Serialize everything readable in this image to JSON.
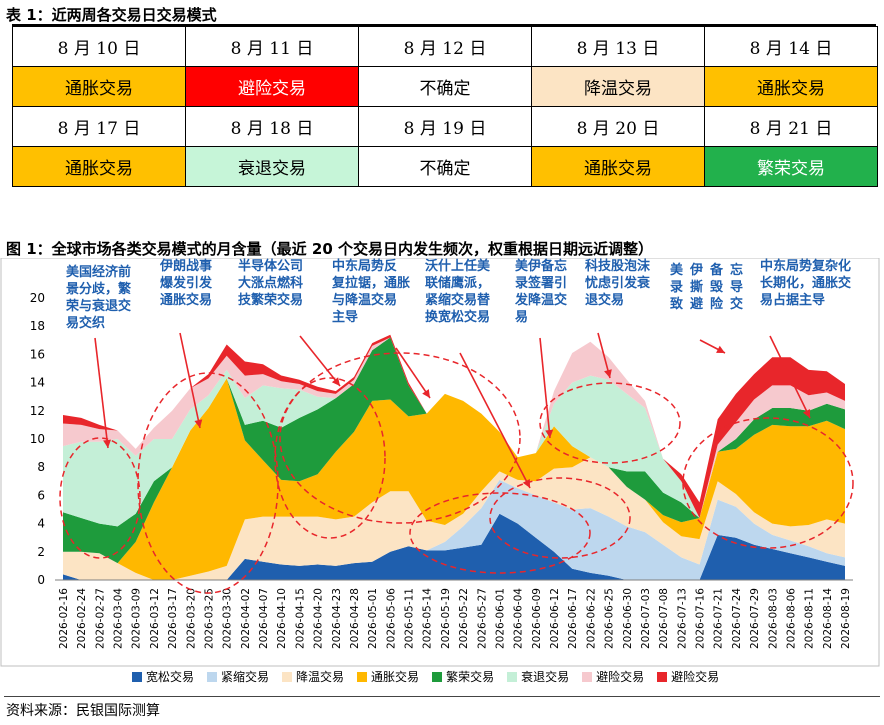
{
  "table": {
    "caption": "表 1：近两周各交易日交易模式",
    "rows": [
      [
        {
          "text": "8 月 10 日",
          "bg": "#ffffff"
        },
        {
          "text": "8 月 11 日",
          "bg": "#ffffff"
        },
        {
          "text": "8 月 12 日",
          "bg": "#ffffff"
        },
        {
          "text": "8 月 13 日",
          "bg": "#ffffff"
        },
        {
          "text": "8 月 14 日",
          "bg": "#ffffff"
        }
      ],
      [
        {
          "text": "通胀交易",
          "bg": "#FFC000",
          "fg": "#000000"
        },
        {
          "text": "避险交易",
          "bg": "#FF0000",
          "fg": "#ffffff"
        },
        {
          "text": "不确定",
          "bg": "#ffffff",
          "fg": "#000000"
        },
        {
          "text": "降温交易",
          "bg": "#FCE4C4",
          "fg": "#000000"
        },
        {
          "text": "通胀交易",
          "bg": "#FFC000",
          "fg": "#000000"
        }
      ],
      [
        {
          "text": "8 月 17 日",
          "bg": "#ffffff"
        },
        {
          "text": "8 月 18 日",
          "bg": "#ffffff"
        },
        {
          "text": "8 月 19 日",
          "bg": "#ffffff"
        },
        {
          "text": "8 月 20 日",
          "bg": "#ffffff"
        },
        {
          "text": "8 月 21 日",
          "bg": "#ffffff"
        }
      ],
      [
        {
          "text": "通胀交易",
          "bg": "#FFC000",
          "fg": "#000000"
        },
        {
          "text": "衰退交易",
          "bg": "#C6F5D8",
          "fg": "#000000"
        },
        {
          "text": "不确定",
          "bg": "#ffffff",
          "fg": "#000000"
        },
        {
          "text": "通胀交易",
          "bg": "#FFC000",
          "fg": "#000000"
        },
        {
          "text": "繁荣交易",
          "bg": "#22B14C",
          "fg": "#ffffff"
        }
      ]
    ]
  },
  "figure": {
    "caption": "图 1：全球市场各类交易模式的月含量（最近 20 个交易日内发生频次，权重根据日期远近调整）",
    "source": "资料来源：民银国际测算",
    "annotations": [
      {
        "text": [
          "美国经济前",
          "景分歧，繁",
          "荣与衰退交",
          "易交织"
        ]
      },
      {
        "text": [
          "伊朗战事",
          "爆发引发",
          "通胀交易"
        ]
      },
      {
        "text": [
          "半导体公司",
          "大涨点燃科",
          "技繁荣交易"
        ]
      },
      {
        "text": [
          "中东局势反",
          "复拉锯，通胀",
          "与降温交易",
          "主导"
        ]
      },
      {
        "text": [
          "沃什上任美",
          "联储鹰派，",
          "紧缩交易替",
          "换宽松交易"
        ]
      },
      {
        "text": [
          "美伊备忘",
          "录签署引",
          "发降温交",
          "易"
        ]
      },
      {
        "text": [
          "科技股泡沫",
          "忧虑引发衰",
          "退交易"
        ]
      },
      {
        "text": [
          "美",
          "录",
          "致"
        ]
      },
      {
        "text": [
          "伊",
          "撕",
          "避"
        ]
      },
      {
        "text": [
          "备",
          "毁",
          "险"
        ]
      },
      {
        "text": [
          "忘",
          "导",
          "交"
        ]
      },
      {
        "text": [
          "中东局势复杂化",
          "长期化，通胀交",
          "易占据主导"
        ]
      }
    ]
  },
  "chart_data": {
    "type": "area",
    "stacked": true,
    "ylim": [
      0,
      20
    ],
    "yticks": [
      "0",
      "2",
      "4",
      "6",
      "8",
      "10",
      "12",
      "14",
      "16",
      "18",
      "20"
    ],
    "xlabels": [
      "2026-02-16",
      "2026-02-24",
      "2026-02-27",
      "2026-03-04",
      "2026-03-09",
      "2026-03-12",
      "2026-03-17",
      "2026-03-20",
      "2026-03-25",
      "2026-03-30",
      "2026-04-02",
      "2026-04-07",
      "2026-04-10",
      "2026-04-15",
      "2026-04-20",
      "2026-04-23",
      "2026-04-28",
      "2026-05-01",
      "2026-05-06",
      "2026-05-11",
      "2026-05-14",
      "2026-05-19",
      "2026-05-22",
      "2026-05-27",
      "2026-06-01",
      "2026-06-04",
      "2026-06-09",
      "2026-06-12",
      "2026-06-17",
      "2026-06-22",
      "2026-06-25",
      "2026-06-30",
      "2026-07-03",
      "2026-07-08",
      "2026-07-13",
      "2026-07-16",
      "2026-07-21",
      "2026-07-24",
      "2026-07-29",
      "2026-08-03",
      "2026-08-06",
      "2026-08-11",
      "2026-08-14",
      "2026-08-19"
    ],
    "series": [
      {
        "name": "宽松交易",
        "color": "#1F5FAE",
        "values": [
          0.4,
          0,
          0,
          0,
          0,
          0,
          0,
          0,
          0,
          0,
          1.5,
          1.3,
          1.1,
          1,
          1.1,
          1,
          1.2,
          1.3,
          2,
          2.4,
          2.1,
          2.1,
          2.3,
          2.5,
          4.7,
          4,
          3,
          2,
          0.8,
          0.5,
          0.3,
          0,
          0,
          0,
          0,
          0,
          3.2,
          3,
          2.5,
          2.2,
          1.9,
          1.6,
          1.3,
          1
        ]
      },
      {
        "name": "紧缩交易",
        "color": "#BDD7EE",
        "values": [
          0,
          0,
          0,
          0,
          0,
          0,
          0,
          0,
          0,
          0,
          0,
          0,
          0,
          0,
          0,
          0,
          0,
          0,
          0,
          0,
          0,
          0.6,
          1.5,
          2.6,
          2.4,
          2.5,
          3,
          3.5,
          4.2,
          4.6,
          4.2,
          3.8,
          3.4,
          2.5,
          1.6,
          1.1,
          2.5,
          2.2,
          1.5,
          1,
          0.9,
          0.8,
          0.6,
          0.6
        ]
      },
      {
        "name": "降温交易",
        "color": "#FCE4C4",
        "values": [
          1.6,
          2,
          1.9,
          1.2,
          0.5,
          0,
          0,
          0.3,
          0.6,
          1,
          2.8,
          3.2,
          3.4,
          3.5,
          3.4,
          3.3,
          3.3,
          4.2,
          4.3,
          3.9,
          2.1,
          1.2,
          0.9,
          1.2,
          0.6,
          0.6,
          1,
          2.4,
          3,
          3.6,
          3.5,
          2.8,
          2.3,
          1.6,
          1.5,
          1.8,
          1.3,
          0.9,
          0.8,
          0.8,
          1,
          1.5,
          2.4,
          2.4
        ]
      },
      {
        "name": "通胀交易",
        "color": "#FFB800",
        "values": [
          0,
          0,
          0,
          0,
          2.2,
          5.5,
          8,
          10.3,
          11.6,
          13.3,
          5.6,
          4,
          2.6,
          2.5,
          3,
          4.8,
          6,
          7.2,
          6.5,
          5.3,
          7.6,
          9.3,
          8,
          5.5,
          2.8,
          1.6,
          2,
          3,
          1.5,
          0,
          0,
          0,
          0,
          0.5,
          1,
          1.5,
          2.1,
          3.2,
          5.5,
          7,
          7.1,
          7,
          7,
          6.7
        ]
      },
      {
        "name": "繁荣交易",
        "color": "#1E9B3C",
        "values": [
          2.8,
          2.4,
          2.1,
          2.6,
          2,
          1.5,
          0,
          0,
          0,
          0,
          1.1,
          2.8,
          3.7,
          4.5,
          4.6,
          3.8,
          3.4,
          3.6,
          4.4,
          2.2,
          0,
          0,
          0,
          0,
          0,
          0,
          0,
          0,
          0,
          0,
          0,
          1.1,
          2,
          1.6,
          1.4,
          0,
          0,
          0.7,
          1.1,
          1.2,
          1.3,
          1.1,
          1.2,
          1.4
        ]
      },
      {
        "name": "衰退交易",
        "color": "#C4EFD7",
        "values": [
          4.7,
          5.4,
          5.8,
          6.2,
          4.1,
          3,
          2,
          1.5,
          0.9,
          0.6,
          1.9,
          2.5,
          2.8,
          2,
          0.9,
          0,
          0,
          0,
          0,
          0,
          0,
          0,
          0,
          0,
          0,
          0,
          0,
          1.6,
          4.5,
          5.8,
          6.2,
          5.5,
          4.5,
          2.4,
          1.5,
          0,
          0,
          0,
          0,
          0,
          0,
          0,
          0,
          0
        ]
      },
      {
        "name": "避险交易",
        "color": "#F6C9CE",
        "values": [
          1.6,
          1.2,
          0.9,
          0.6,
          0.5,
          0.8,
          2,
          1.5,
          1.2,
          1,
          1.6,
          0.8,
          0.5,
          0.4,
          0.4,
          0.3,
          0.3,
          0.3,
          0,
          0,
          0,
          0,
          0,
          0,
          0,
          0,
          0,
          0.9,
          2.1,
          2.4,
          1.6,
          1,
          0.5,
          0,
          0,
          0,
          0.5,
          1.2,
          1.4,
          1.6,
          1.6,
          1.1,
          0.8,
          0.6
        ]
      },
      {
        "name": "避险交易",
        "color": "#E8262B",
        "values": [
          0.6,
          0.5,
          0.3,
          0,
          0,
          0,
          0,
          0,
          0.3,
          0.8,
          1,
          0.7,
          0.4,
          0.3,
          0.3,
          0.2,
          0.2,
          0.2,
          0.2,
          0.2,
          0,
          0,
          0,
          0,
          0,
          0,
          0,
          0,
          0,
          0,
          0,
          0,
          0,
          0,
          0.5,
          1.1,
          1.8,
          2,
          1.8,
          2,
          2,
          1.8,
          1.5,
          1.2
        ]
      }
    ]
  }
}
